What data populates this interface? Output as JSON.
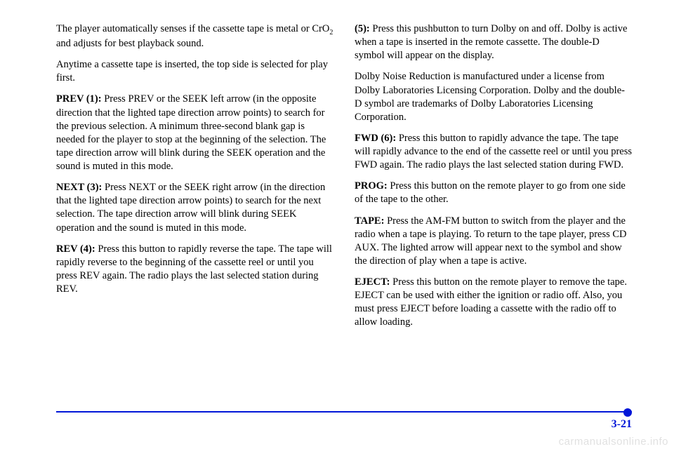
{
  "left": {
    "p1_a": "The player automatically senses if the cassette tape is metal or CrO",
    "p1_b": " and adjusts for best playback sound.",
    "p2": "Anytime a cassette tape is inserted, the top side is selected for play first.",
    "p3_label": "PREV (1): ",
    "p3": "Press PREV or the SEEK left arrow (in the opposite direction that the lighted tape direction arrow points) to search for the previous selection. A minimum three-second blank gap is needed for the player to stop at the beginning of the selection. The tape direction arrow will blink during the SEEK operation and the sound is muted in this mode.",
    "p4_label": "NEXT (3): ",
    "p4": "Press NEXT or the SEEK right arrow (in the direction that the lighted tape direction arrow points) to search for the next selection. The tape direction arrow will blink during SEEK operation and the sound is muted in this mode.",
    "p5_label": "REV (4): ",
    "p5": "Press this button to rapidly reverse the tape. The tape will rapidly reverse to the beginning of the cassette reel or until you press REV again. The radio plays the last selected station during REV."
  },
  "right": {
    "p1_label": "(5): ",
    "p1": "Press this pushbutton to turn Dolby on and off. Dolby is active when a tape is inserted in the remote cassette. The double-D symbol will appear on the display.",
    "p2": "Dolby Noise Reduction is manufactured under a license from Dolby Laboratories Licensing Corporation. Dolby and the double-D symbol are trademarks of Dolby Laboratories Licensing Corporation.",
    "p3_label": "FWD (6): ",
    "p3": "Press this button to rapidly advance the tape. The tape will rapidly advance to the end of the cassette reel or until you press FWD again. The radio plays the last selected station during FWD.",
    "p4_label": "PROG: ",
    "p4": "Press this button on the remote player to go from one side of the tape to the other.",
    "p5_label": "TAPE: ",
    "p5": "Press the AM-FM button to switch from the player and the radio when a tape is playing. To return to the tape player, press CD AUX. The lighted arrow will appear next to the symbol and show the direction of play when a tape is active.",
    "p6_label": "EJECT: ",
    "p6": "Press this button on the remote player to remove the tape. EJECT can be used with either the ignition or radio off. Also, you must press EJECT before loading a cassette with the radio off to allow loading."
  },
  "pagenum": "3-21",
  "watermark": "carmanualsonline.info",
  "subscript": "2"
}
